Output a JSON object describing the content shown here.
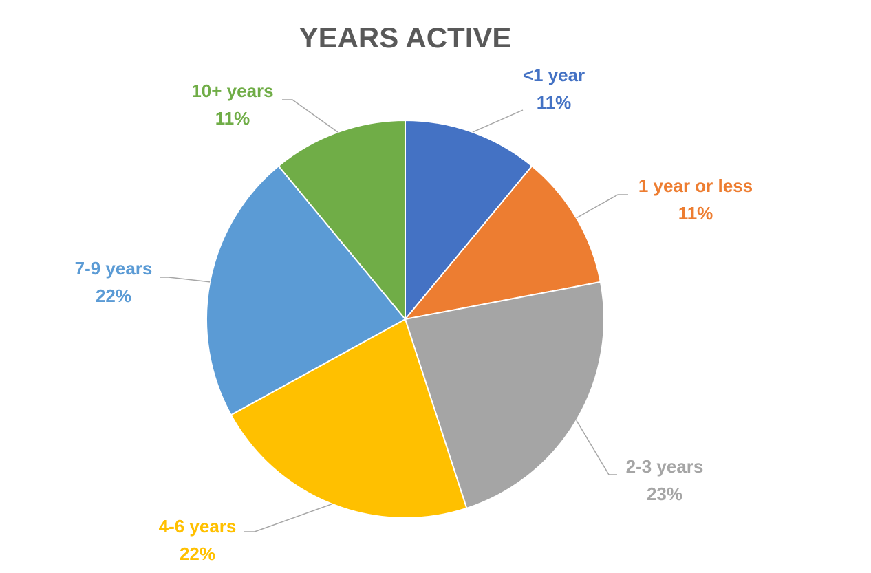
{
  "chart_data": {
    "type": "pie",
    "title": "YEARS ACTIVE",
    "categories": [
      "<1 year",
      "1 year or less",
      "2-3 years",
      "4-6 years",
      "7-9 years",
      "10+ years"
    ],
    "values": [
      11,
      11,
      23,
      22,
      22,
      11
    ],
    "value_labels": [
      "11%",
      "11%",
      "23%",
      "22%",
      "22%",
      "11%"
    ],
    "colors": [
      "#4472c4",
      "#ed7d31",
      "#a5a5a5",
      "#ffc000",
      "#5b9bd5",
      "#70ad47"
    ]
  }
}
